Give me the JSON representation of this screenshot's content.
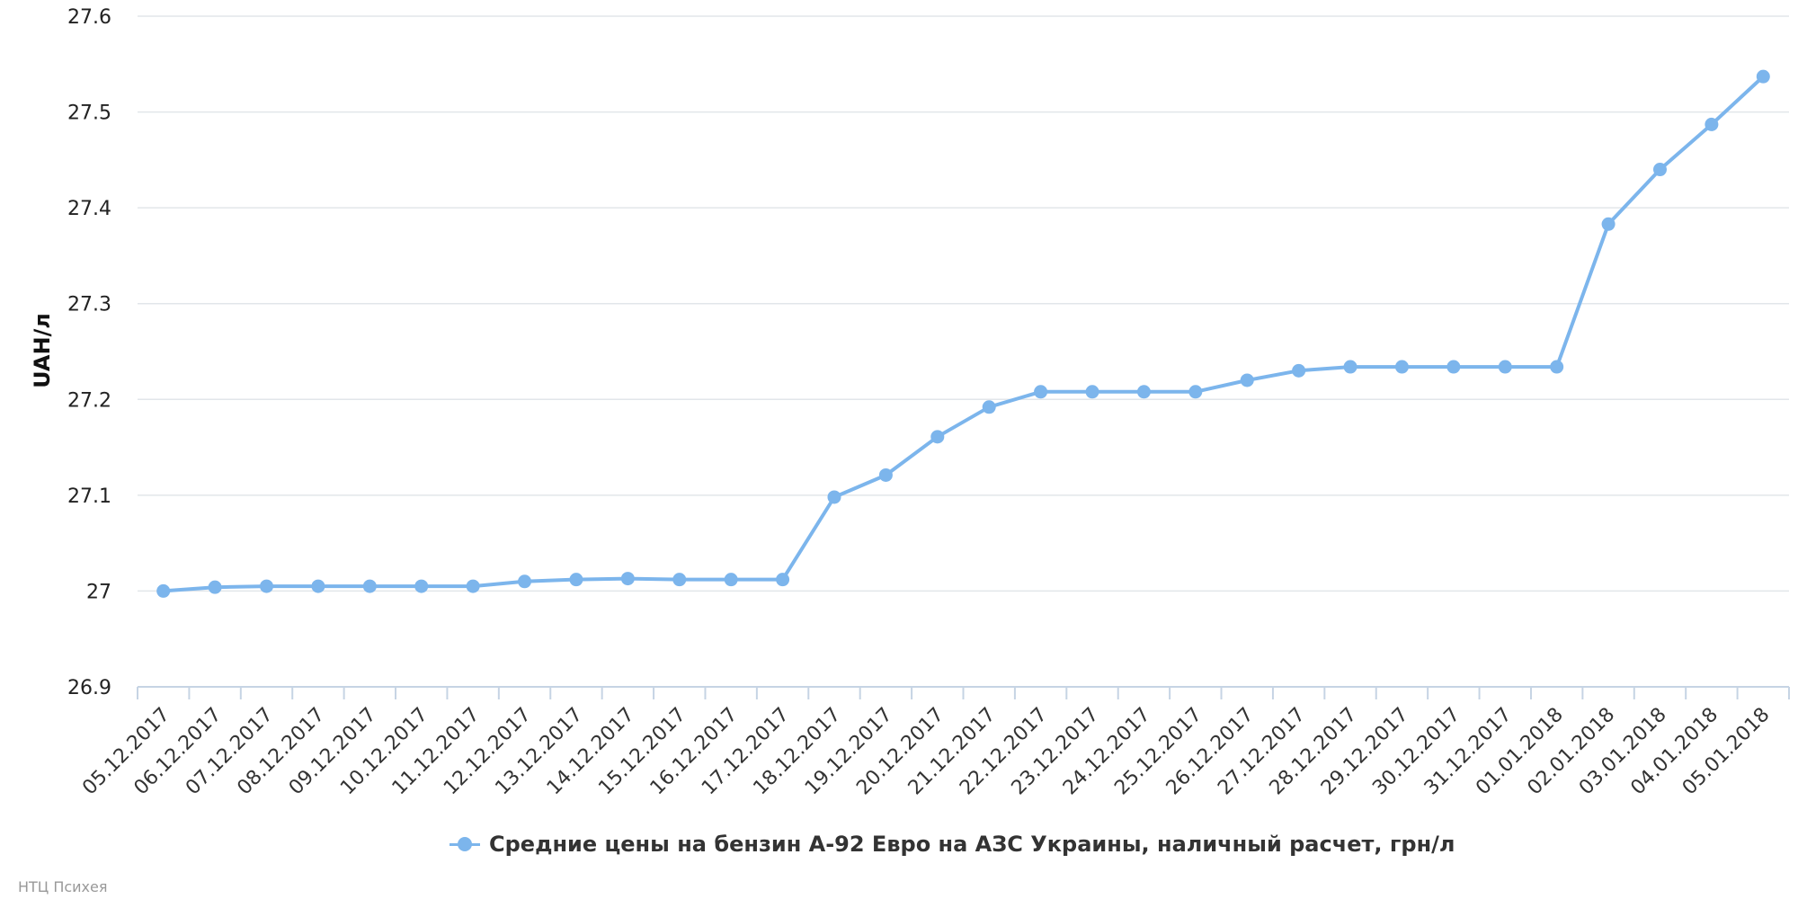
{
  "chart_data": {
    "type": "line",
    "title": "",
    "xlabel": "",
    "ylabel": "UAH/л",
    "ylim": [
      26.9,
      27.6
    ],
    "yticks": [
      26.9,
      27,
      27.1,
      27.2,
      27.3,
      27.4,
      27.5,
      27.6
    ],
    "grid": true,
    "legend_position": "bottom-center",
    "categories": [
      "05.12.2017",
      "06.12.2017",
      "07.12.2017",
      "08.12.2017",
      "09.12.2017",
      "10.12.2017",
      "11.12.2017",
      "12.12.2017",
      "13.12.2017",
      "14.12.2017",
      "15.12.2017",
      "16.12.2017",
      "17.12.2017",
      "18.12.2017",
      "19.12.2017",
      "20.12.2017",
      "21.12.2017",
      "22.12.2017",
      "23.12.2017",
      "24.12.2017",
      "25.12.2017",
      "26.12.2017",
      "27.12.2017",
      "28.12.2017",
      "29.12.2017",
      "30.12.2017",
      "31.12.2017",
      "01.01.2018",
      "02.01.2018",
      "03.01.2018",
      "04.01.2018",
      "05.01.2018"
    ],
    "series": [
      {
        "name": "Средние цены на бензин А-92 Евро на АЗС Украины, наличный расчет, грн/л",
        "color": "#7cb5ec",
        "values": [
          27.0,
          27.004,
          27.005,
          27.005,
          27.005,
          27.005,
          27.005,
          27.01,
          27.012,
          27.013,
          27.012,
          27.012,
          27.012,
          27.098,
          27.121,
          27.161,
          27.192,
          27.208,
          27.208,
          27.208,
          27.208,
          27.22,
          27.23,
          27.234,
          27.234,
          27.234,
          27.234,
          27.234,
          27.383,
          27.44,
          27.487,
          27.537
        ]
      }
    ]
  },
  "credit": "НТЦ Психея"
}
